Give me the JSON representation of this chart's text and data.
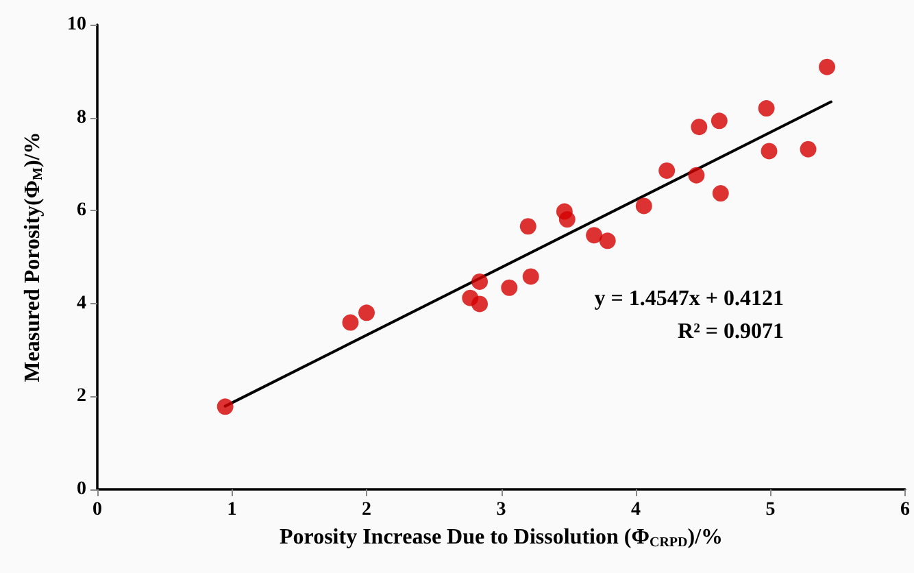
{
  "chart_data": {
    "type": "scatter",
    "xlabel": "Porosity Increase Due to Dissolution (Φ$_{CRPD}$)/%",
    "ylabel": "Measured Porosity(Φ$_{M}$)/%",
    "series": [
      {
        "color": "#d40000",
        "marker": "circle",
        "x": [
          0.95,
          1.88,
          2.0,
          2.77,
          2.84,
          2.84,
          3.06,
          3.22,
          3.2,
          3.47,
          3.49,
          3.69,
          3.79,
          4.06,
          4.23,
          4.45,
          4.47,
          4.62,
          4.63,
          4.97,
          4.99,
          5.28,
          5.42
        ],
        "values": [
          1.78,
          3.59,
          3.8,
          4.12,
          3.99,
          4.47,
          4.34,
          4.58,
          5.66,
          5.98,
          5.81,
          5.47,
          5.35,
          6.1,
          6.86,
          6.76,
          7.8,
          7.93,
          6.37,
          8.2,
          7.28,
          7.32,
          9.09
        ]
      },
      {
        "type": "line",
        "color": "#000000",
        "x": [
          0.95,
          5.45
        ],
        "values": [
          1.79,
          8.34
        ]
      }
    ],
    "annotations": [
      "y = 1.4547x + 0.4121",
      "R² = 0.9071"
    ],
    "xlim": [
      0,
      6
    ],
    "xticks": [
      0,
      1,
      2,
      3,
      4,
      5,
      6
    ],
    "ylim": [
      0,
      10
    ],
    "yticks": [
      0,
      2,
      4,
      6,
      8,
      10
    ],
    "grid": false
  }
}
